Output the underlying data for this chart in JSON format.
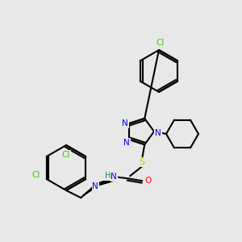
{
  "background_color": "#e8e8e8",
  "atom_colors": {
    "N": "#0000ee",
    "S": "#cccc00",
    "O": "#ff0000",
    "Cl": "#33cc00",
    "C": "#000000",
    "H": "#008888"
  },
  "bg": "#e8e8e8"
}
